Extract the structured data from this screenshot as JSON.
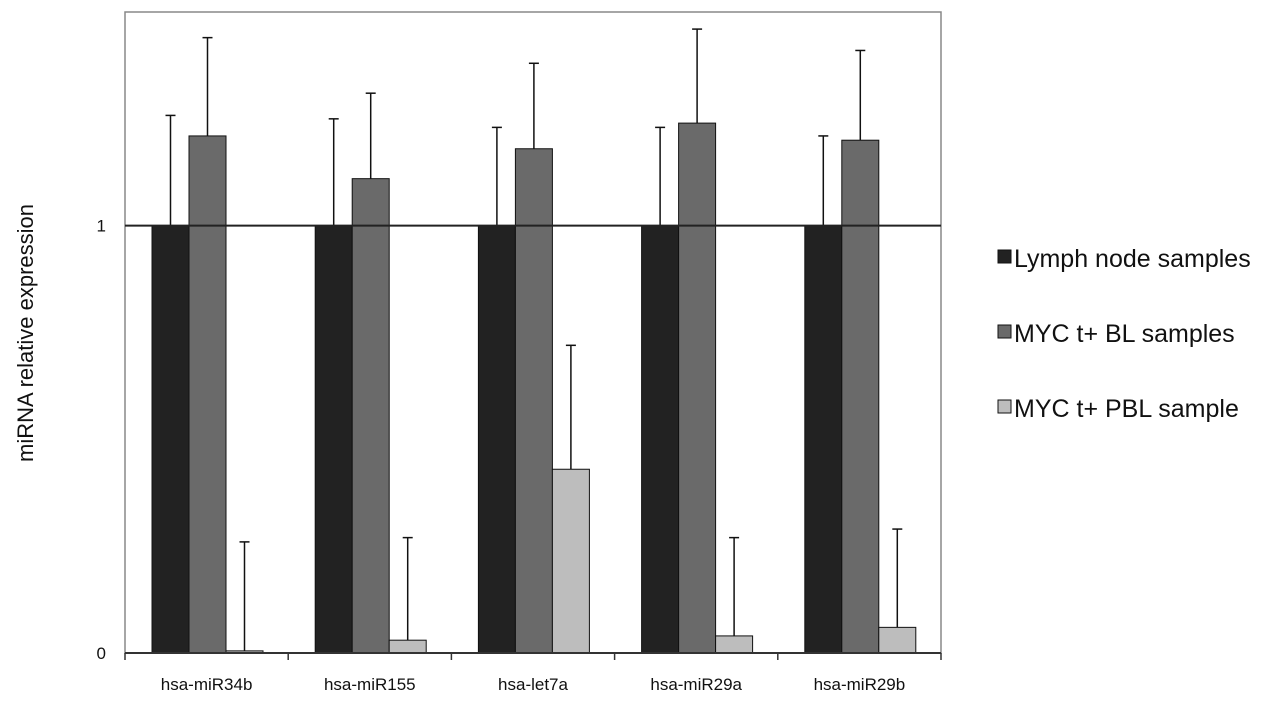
{
  "chart_data": {
    "type": "bar",
    "categories": [
      "hsa-miR34b",
      "hsa-miR155",
      "hsa-let7a",
      "hsa-miR29a",
      "hsa-miR29b"
    ],
    "series": [
      {
        "name": "Lymph node samples",
        "values": [
          1.0,
          1.0,
          1.0,
          1.0,
          1.0
        ],
        "error_upper": [
          1.258,
          1.25,
          1.23,
          1.23,
          1.21
        ],
        "color": "#222222"
      },
      {
        "name": "MYC t+ BL samples",
        "values": [
          1.21,
          1.11,
          1.18,
          1.24,
          1.2
        ],
        "error_upper": [
          1.44,
          1.31,
          1.38,
          1.46,
          1.41
        ],
        "color": "#6a6a6a"
      },
      {
        "name": "MYC t+ PBL sample",
        "values": [
          0.005,
          0.03,
          0.43,
          0.04,
          0.06
        ],
        "error_upper": [
          0.26,
          0.27,
          0.72,
          0.27,
          0.29
        ],
        "color": "#bdbdbd"
      }
    ],
    "title": "",
    "xlabel": "",
    "ylabel": "miRNA relative expression",
    "ylim": [
      0,
      1.5
    ],
    "yticks": [
      "0",
      "1"
    ],
    "reference_line": 1,
    "legend_position": "right",
    "grid": false
  }
}
